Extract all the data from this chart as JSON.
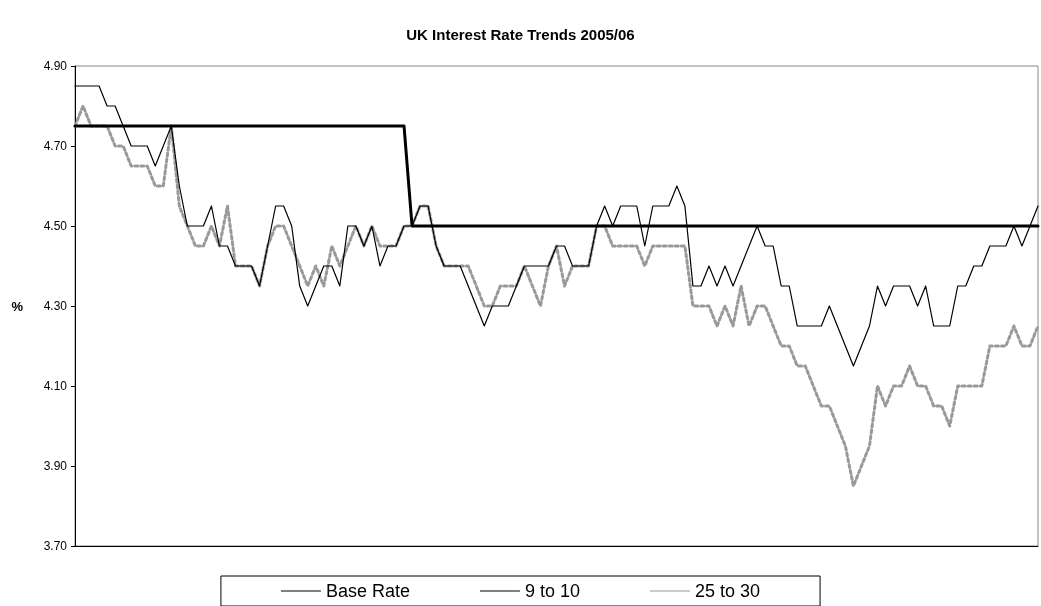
{
  "chart_data": {
    "type": "line",
    "title": "UK Interest Rate Trends 2005/06",
    "ylabel": "%",
    "categories": [
      null,
      null,
      null,
      null,
      null,
      null,
      null,
      null,
      null,
      null,
      null,
      null,
      null,
      null,
      null,
      null,
      null,
      null,
      null,
      null,
      null,
      null,
      null,
      null,
      null,
      null,
      null,
      null,
      null,
      null,
      null,
      null,
      null,
      null,
      null,
      null,
      null,
      null,
      null,
      null,
      null,
      null,
      null,
      null,
      null,
      null,
      null,
      null,
      null,
      null,
      null,
      null,
      null,
      null,
      null,
      null,
      null,
      null,
      null,
      null,
      null,
      null,
      null,
      null,
      null,
      null,
      null,
      null,
      null,
      null,
      null,
      null,
      null,
      null,
      null,
      null,
      null,
      null,
      null,
      null,
      null,
      null,
      null,
      null,
      null,
      null,
      null,
      null,
      null,
      null,
      null,
      null,
      null,
      null,
      null,
      null,
      null,
      null,
      null,
      null,
      null,
      null,
      null,
      null,
      null,
      null,
      null,
      null,
      null,
      null,
      null,
      null,
      null,
      null,
      null,
      null,
      null,
      null,
      null,
      null,
      null
    ],
    "series": [
      {
        "name": "Base Rate",
        "color": "#000000",
        "line_style": "solid",
        "values": [
          4.75,
          4.75,
          4.75,
          4.75,
          4.75,
          4.75,
          4.75,
          4.75,
          4.75,
          4.75,
          4.75,
          4.75,
          4.75,
          4.75,
          4.75,
          4.75,
          4.75,
          4.75,
          4.75,
          4.75,
          4.75,
          4.75,
          4.75,
          4.75,
          4.75,
          4.75,
          4.75,
          4.75,
          4.75,
          4.75,
          4.75,
          4.75,
          4.75,
          4.75,
          4.75,
          4.75,
          4.75,
          4.75,
          4.75,
          4.75,
          4.75,
          4.75,
          4.5,
          4.5,
          4.5,
          4.5,
          4.5,
          4.5,
          4.5,
          4.5,
          4.5,
          4.5,
          4.5,
          4.5,
          4.5,
          4.5,
          4.5,
          4.5,
          4.5,
          4.5,
          4.5,
          4.5,
          4.5,
          4.5,
          4.5,
          4.5,
          4.5,
          4.5,
          4.5,
          4.5,
          4.5,
          4.5,
          4.5,
          4.5,
          4.5,
          4.5,
          4.5,
          4.5,
          4.5,
          4.5,
          4.5,
          4.5,
          4.5,
          4.5,
          4.5,
          4.5,
          4.5,
          4.5,
          4.5,
          4.5,
          4.5,
          4.5,
          4.5,
          4.5,
          4.5,
          4.5,
          4.5,
          4.5,
          4.5,
          4.5,
          4.5,
          4.5,
          4.5,
          4.5,
          4.5,
          4.5,
          4.5,
          4.5,
          4.5,
          4.5,
          4.5,
          4.5,
          4.5,
          4.5,
          4.5,
          4.5,
          4.5,
          4.5,
          4.5,
          4.5,
          4.5
        ]
      },
      {
        "name": "9 to 10",
        "color": "#000000",
        "line_style": "solid",
        "values": [
          4.85,
          4.85,
          4.85,
          4.85,
          4.8,
          4.8,
          4.75,
          4.7,
          4.7,
          4.7,
          4.65,
          4.7,
          4.75,
          4.6,
          4.5,
          4.5,
          4.5,
          4.55,
          4.45,
          4.45,
          4.4,
          4.4,
          4.4,
          4.35,
          4.45,
          4.55,
          4.55,
          4.5,
          4.35,
          4.3,
          4.35,
          4.4,
          4.4,
          4.35,
          4.5,
          4.5,
          4.45,
          4.5,
          4.4,
          4.45,
          4.45,
          4.5,
          4.5,
          4.55,
          4.55,
          4.45,
          4.4,
          4.4,
          4.4,
          4.35,
          4.3,
          4.25,
          4.3,
          4.3,
          4.3,
          4.35,
          4.4,
          4.4,
          4.4,
          4.4,
          4.45,
          4.45,
          4.4,
          4.4,
          4.4,
          4.5,
          4.55,
          4.5,
          4.55,
          4.55,
          4.55,
          4.45,
          4.55,
          4.55,
          4.55,
          4.6,
          4.55,
          4.35,
          4.35,
          4.4,
          4.35,
          4.4,
          4.35,
          4.4,
          4.45,
          4.5,
          4.45,
          4.45,
          4.35,
          4.35,
          4.25,
          4.25,
          4.25,
          4.25,
          4.3,
          4.25,
          4.2,
          4.15,
          4.2,
          4.25,
          4.35,
          4.3,
          4.35,
          4.35,
          4.35,
          4.3,
          4.35,
          4.25,
          4.25,
          4.25,
          4.35,
          4.35,
          4.4,
          4.4,
          4.45,
          4.45,
          4.45,
          4.5,
          4.45,
          4.5,
          4.55
        ]
      },
      {
        "name": "25 to 30",
        "color": "#999999",
        "line_style": "dotted",
        "values": [
          4.75,
          4.8,
          4.75,
          4.75,
          4.75,
          4.7,
          4.7,
          4.65,
          4.65,
          4.65,
          4.6,
          4.6,
          4.75,
          4.55,
          4.5,
          4.45,
          4.45,
          4.5,
          4.45,
          4.55,
          4.4,
          4.4,
          4.4,
          4.35,
          4.45,
          4.5,
          4.5,
          4.45,
          4.4,
          4.35,
          4.4,
          4.35,
          4.45,
          4.4,
          4.45,
          4.5,
          4.45,
          4.5,
          4.45,
          4.45,
          4.45,
          4.5,
          4.5,
          4.55,
          4.55,
          4.45,
          4.4,
          4.4,
          4.4,
          4.4,
          4.35,
          4.3,
          4.3,
          4.35,
          4.35,
          4.35,
          4.4,
          4.35,
          4.3,
          4.4,
          4.45,
          4.35,
          4.4,
          4.4,
          4.4,
          4.5,
          4.5,
          4.45,
          4.45,
          4.45,
          4.45,
          4.4,
          4.45,
          4.45,
          4.45,
          4.45,
          4.45,
          4.3,
          4.3,
          4.3,
          4.25,
          4.3,
          4.25,
          4.35,
          4.25,
          4.3,
          4.3,
          4.25,
          4.2,
          4.2,
          4.15,
          4.15,
          4.1,
          4.05,
          4.05,
          4.0,
          3.95,
          3.85,
          3.9,
          3.95,
          4.1,
          4.05,
          4.1,
          4.1,
          4.15,
          4.1,
          4.1,
          4.05,
          4.05,
          4.0,
          4.1,
          4.1,
          4.1,
          4.1,
          4.2,
          4.2,
          4.2,
          4.25,
          4.2,
          4.2,
          4.25
        ]
      }
    ],
    "ylim": [
      3.7,
      4.9
    ],
    "yticks": [
      {
        "value": 3.7,
        "label": "3.70"
      },
      {
        "value": 3.9,
        "label": "3.90"
      },
      {
        "value": 4.1,
        "label": "4.10"
      },
      {
        "value": 4.3,
        "label": "4.30"
      },
      {
        "value": 4.5,
        "label": "4.50"
      },
      {
        "value": 4.7,
        "label": "4.70"
      },
      {
        "value": 4.9,
        "label": "4.90"
      }
    ],
    "grid": false,
    "legend": "bottom",
    "marker": "none"
  }
}
